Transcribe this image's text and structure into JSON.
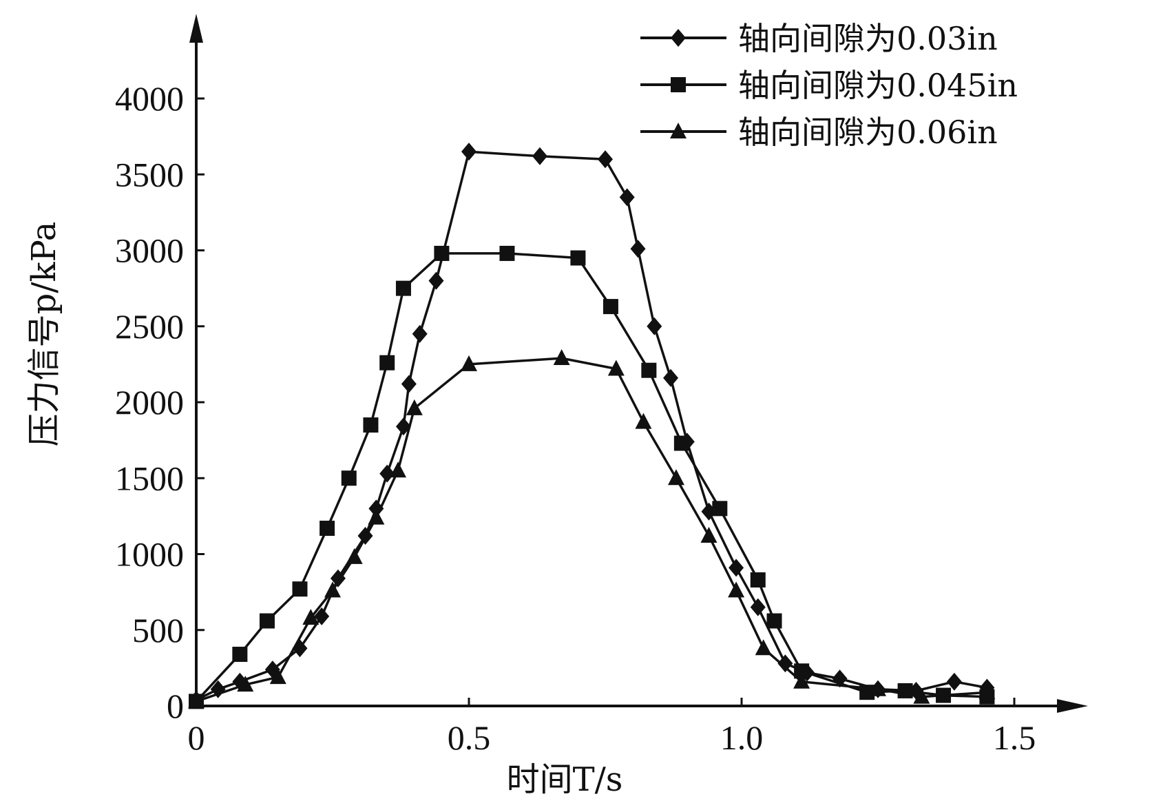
{
  "chart_data": {
    "type": "line",
    "xlabel": "时间T/s",
    "ylabel": "压力信号p/kPa",
    "xlim": [
      0,
      1.6
    ],
    "ylim": [
      0,
      4600
    ],
    "x_ticks": [
      "0",
      "0.5",
      "1.0",
      "1.5"
    ],
    "x_tick_values": [
      0,
      0.5,
      1.0,
      1.5
    ],
    "y_ticks": [
      "0",
      "500",
      "1000",
      "1500",
      "2000",
      "2500",
      "3000",
      "3500",
      "4000"
    ],
    "y_tick_values": [
      0,
      500,
      1000,
      1500,
      2000,
      2500,
      3000,
      3500,
      4000
    ],
    "legend_position": "top-right",
    "grid": false,
    "series": [
      {
        "name": "轴向间隙为0.03in",
        "marker": "diamond",
        "color": "#111111",
        "x": [
          0,
          0.04,
          0.08,
          0.14,
          0.19,
          0.23,
          0.26,
          0.31,
          0.33,
          0.35,
          0.38,
          0.39,
          0.41,
          0.44,
          0.5,
          0.63,
          0.75,
          0.79,
          0.81,
          0.84,
          0.87,
          0.9,
          0.94,
          0.99,
          1.03,
          1.08,
          1.12,
          1.18,
          1.25,
          1.32,
          1.39,
          1.45
        ],
        "y": [
          40,
          110,
          160,
          240,
          380,
          590,
          840,
          1120,
          1300,
          1530,
          1840,
          2120,
          2450,
          2800,
          3650,
          3620,
          3600,
          3350,
          3010,
          2500,
          2160,
          1740,
          1280,
          910,
          650,
          280,
          220,
          180,
          110,
          100,
          160,
          120
        ]
      },
      {
        "name": "轴向间隙为0.045in",
        "marker": "square",
        "color": "#111111",
        "x": [
          0,
          0.08,
          0.13,
          0.19,
          0.24,
          0.28,
          0.32,
          0.35,
          0.38,
          0.45,
          0.57,
          0.7,
          0.76,
          0.83,
          0.89,
          0.96,
          1.03,
          1.06,
          1.11,
          1.23,
          1.3,
          1.37,
          1.45
        ],
        "y": [
          30,
          340,
          560,
          770,
          1170,
          1500,
          1850,
          2260,
          2750,
          2980,
          2980,
          2950,
          2630,
          2210,
          1730,
          1300,
          830,
          560,
          230,
          90,
          100,
          70,
          60
        ]
      },
      {
        "name": "轴向间隙为0.06in",
        "marker": "triangle",
        "color": "#111111",
        "x": [
          0,
          0.09,
          0.15,
          0.21,
          0.25,
          0.29,
          0.33,
          0.37,
          0.4,
          0.5,
          0.67,
          0.77,
          0.82,
          0.88,
          0.94,
          0.99,
          1.04,
          1.11,
          1.25,
          1.33,
          1.45
        ],
        "y": [
          30,
          140,
          190,
          580,
          760,
          980,
          1240,
          1550,
          1960,
          2250,
          2290,
          2220,
          1870,
          1500,
          1120,
          760,
          380,
          160,
          110,
          60,
          90
        ]
      }
    ]
  }
}
